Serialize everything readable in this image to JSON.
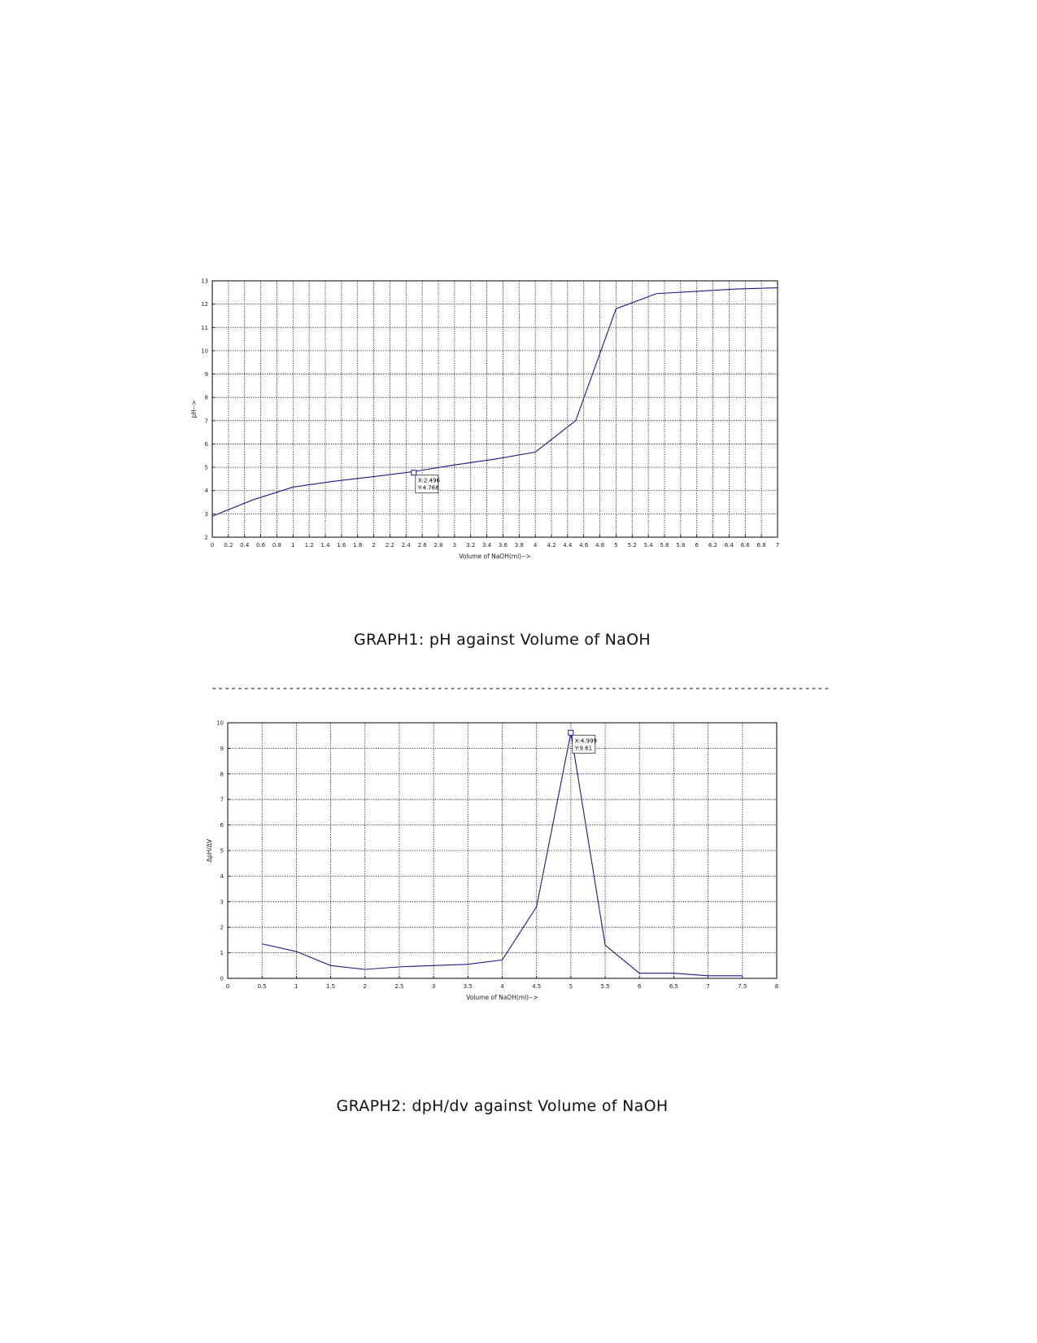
{
  "captions": {
    "graph1": "GRAPH1:  pH against Volume of NaOH",
    "graph2": "GRAPH2: dpH/dv against Volume of NaOH"
  },
  "separator": "--------------------------------------------------------------------------------------------------------------------------------------------------------------",
  "colors": {
    "line": "#1a1a8c",
    "grid": "#000000",
    "axis": "#000000"
  },
  "chart_data": [
    {
      "type": "line",
      "title": "",
      "xlabel": "Volume of NaOH(ml)-->",
      "ylabel": "pH-->",
      "xlim": [
        0,
        7
      ],
      "ylim": [
        2,
        13
      ],
      "xticks": [
        "0",
        "0.2",
        "0.4",
        "0.6",
        "0.8",
        "1",
        "1.2",
        "1.4",
        "1.6",
        "1.8",
        "2",
        "2.2",
        "2.4",
        "2.6",
        "2.8",
        "3",
        "3.2",
        "3.4",
        "3.6",
        "3.8",
        "4",
        "4.2",
        "4.4",
        "4.6",
        "4.8",
        "5",
        "5.2",
        "5.4",
        "5.6",
        "5.8",
        "6",
        "6.2",
        "6.4",
        "6.6",
        "6.8",
        "7"
      ],
      "yticks": [
        "2",
        "3",
        "4",
        "5",
        "6",
        "7",
        "8",
        "9",
        "10",
        "11",
        "12",
        "13"
      ],
      "grid": true,
      "x": [
        0,
        0.5,
        1,
        1.5,
        2,
        2.5,
        3,
        3.5,
        4,
        4.5,
        5,
        5.5,
        6,
        6.5,
        7
      ],
      "y": [
        2.9,
        3.6,
        4.15,
        4.4,
        4.6,
        4.82,
        5.1,
        5.35,
        5.65,
        7.0,
        11.8,
        12.45,
        12.55,
        12.65,
        12.7
      ],
      "datatip": {
        "x": 2.496,
        "y": 4.768,
        "x_label": "X:2.496",
        "y_label": "Y:4.768"
      }
    },
    {
      "type": "line",
      "title": "",
      "xlabel": "Volume of NaOH(ml)-->",
      "ylabel": "ΔpH/ΔV",
      "xlim": [
        0,
        8
      ],
      "ylim": [
        0,
        10
      ],
      "xticks": [
        "0",
        "0.5",
        "1",
        "1.5",
        "2",
        "2.5",
        "3",
        "3.5",
        "4",
        "4.5",
        "5",
        "5.5",
        "6",
        "6.5",
        "7",
        "7.5",
        "8"
      ],
      "yticks": [
        "0",
        "1",
        "2",
        "3",
        "4",
        "5",
        "6",
        "7",
        "8",
        "9",
        "10"
      ],
      "grid": true,
      "x": [
        0.5,
        1,
        1.5,
        2,
        2.5,
        3,
        3.5,
        4,
        4.5,
        5,
        5.5,
        6,
        6.5,
        7,
        7.5
      ],
      "y": [
        1.35,
        1.05,
        0.5,
        0.35,
        0.45,
        0.5,
        0.55,
        0.72,
        2.8,
        9.61,
        1.3,
        0.2,
        0.2,
        0.1,
        0.1
      ],
      "datatip": {
        "x": 4.999,
        "y": 9.61,
        "x_label": "X:4.999",
        "y_label": "Y:9.61"
      }
    }
  ]
}
